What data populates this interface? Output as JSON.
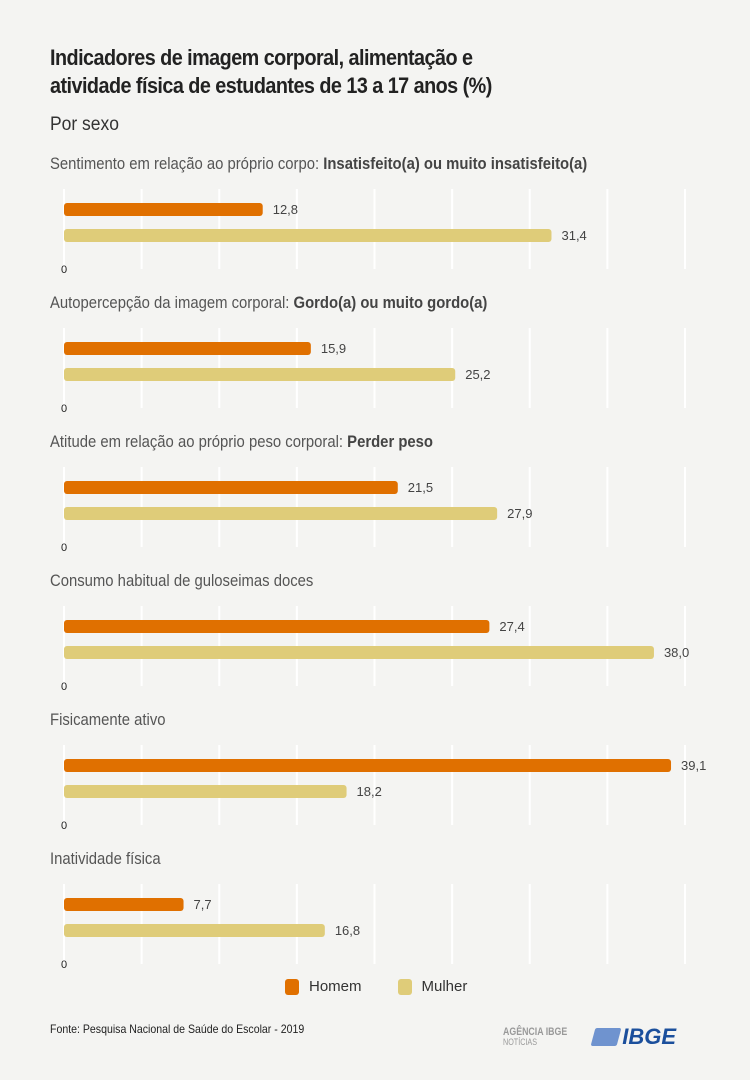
{
  "title": "Indicadores de imagem corporal, alimentação e atividade física de estudantes de 13 a 17 anos (%)",
  "subtitle": "Por sexo",
  "colors": {
    "Homem": "#e07000",
    "Mulher": "#dfcc79",
    "grid": "#ffffff",
    "background": "#f4f4f2"
  },
  "chart_data": {
    "type": "bar",
    "orientation": "horizontal",
    "xlim": [
      0,
      40
    ],
    "grid": true,
    "grid_step": 5,
    "legend": "bottom-center",
    "series_names": [
      "Homem",
      "Mulher"
    ],
    "panels": [
      {
        "label": "Sentimento em relação ao próprio corpo: ",
        "label_bold": "Insatisfeito(a) ou muito insatisfeito(a)",
        "values": [
          12.8,
          31.4
        ],
        "labels": [
          "12,8",
          "31,4"
        ],
        "zero": "0"
      },
      {
        "label": "Autopercepção da imagem corporal: ",
        "label_bold": "Gordo(a) ou muito gordo(a)",
        "values": [
          15.9,
          25.2
        ],
        "labels": [
          "15,9",
          "25,2"
        ],
        "zero": "0"
      },
      {
        "label": "Atitude em relação ao próprio peso corporal: ",
        "label_bold": "Perder peso",
        "values": [
          21.5,
          27.9
        ],
        "labels": [
          "21,5",
          "27,9"
        ],
        "zero": "0"
      },
      {
        "label": "Consumo habitual de guloseimas doces",
        "label_bold": "",
        "values": [
          27.4,
          38.0
        ],
        "labels": [
          "27,4",
          "38,0"
        ],
        "zero": "0"
      },
      {
        "label": "Fisicamente ativo",
        "label_bold": "",
        "values": [
          39.1,
          18.2
        ],
        "labels": [
          "39,1",
          "18,2"
        ],
        "zero": "0"
      },
      {
        "label": "Inatividade física",
        "label_bold": "",
        "values": [
          7.7,
          16.8
        ],
        "labels": [
          "7,7",
          "16,8"
        ],
        "zero": "0"
      }
    ]
  },
  "legend": {
    "homem": "Homem",
    "mulher": "Mulher"
  },
  "source": "Fonte:  Pesquisa Nacional de Saúde do Escolar - 2019",
  "logos": {
    "agencia": "AGÊNCIA IBGE",
    "noticias": "NOTÍCIAS",
    "ibge": "IBGE"
  }
}
